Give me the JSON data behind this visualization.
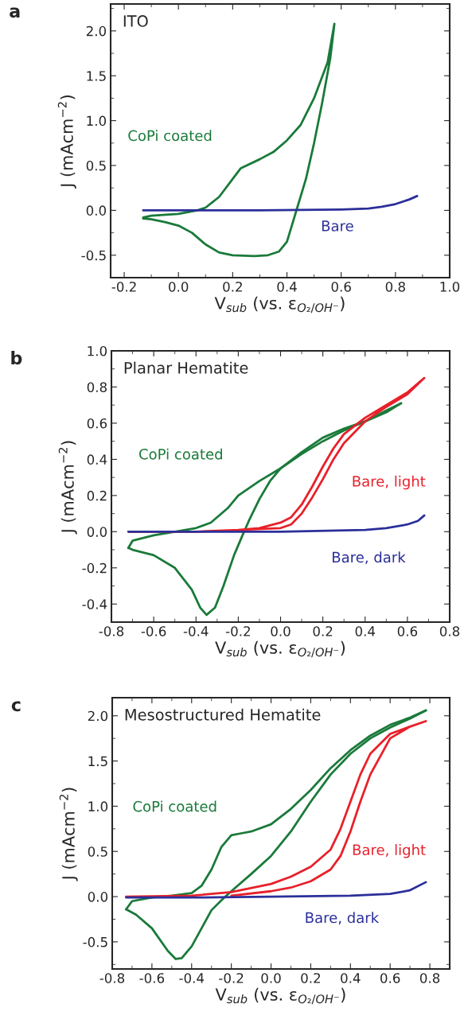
{
  "chart_data": [
    {
      "type": "line",
      "title": "a",
      "subtitle": "ITO",
      "xlabel": "V$_{sub}$ (vs. ε$_{O₂/OH⁻}$)",
      "ylabel": "J (mAcm$^{−2}$)",
      "xlim": [
        -0.25,
        1.0
      ],
      "ylim": [
        -0.75,
        2.3
      ],
      "xticks": [
        {
          "value": -0.2,
          "label": "-0.2"
        },
        {
          "value": 0,
          "label": "0.0"
        },
        0.2,
        0.4,
        0.6,
        0.8,
        {
          "value": 1,
          "label": "1.0"
        }
      ],
      "yticks": [
        {
          "value": -0.5,
          "label": "-0.5"
        },
        {
          "value": 0,
          "label": "0.0"
        },
        0.5,
        {
          "value": 1,
          "label": "1.0"
        },
        1.5,
        {
          "value": 2,
          "label": "2.0"
        }
      ],
      "grid": false,
      "series": [
        {
          "name": "CoPi coated",
          "color": "#1a7a3a",
          "x": [
            -0.13,
            -0.1,
            0,
            0.07,
            0.1,
            0.15,
            0.2,
            0.23,
            0.3,
            0.35,
            0.4,
            0.45,
            0.5,
            0.55,
            0.575,
            0.56,
            0.53,
            0.5,
            0.47,
            0.44,
            0.42,
            0.4,
            0.37,
            0.33,
            0.28,
            0.2,
            0.15,
            0.1,
            0.05,
            0,
            -0.05,
            -0.1,
            -0.13
          ],
          "values": [
            -0.08,
            -0.06,
            -0.04,
            0,
            0.03,
            0.15,
            0.35,
            0.47,
            0.57,
            0.65,
            0.78,
            0.95,
            1.25,
            1.65,
            2.08,
            1.7,
            1.2,
            0.75,
            0.35,
            0.05,
            -0.15,
            -0.35,
            -0.46,
            -0.5,
            -0.51,
            -0.5,
            -0.47,
            -0.38,
            -0.25,
            -0.17,
            -0.13,
            -0.1,
            -0.09
          ]
        },
        {
          "name": "Bare",
          "color": "#2b2f99",
          "x": [
            -0.13,
            0.3,
            0.6,
            0.7,
            0.75,
            0.8,
            0.85,
            0.88
          ],
          "values": [
            0,
            0,
            0.01,
            0.02,
            0.04,
            0.07,
            0.12,
            0.16
          ]
        }
      ]
    },
    {
      "type": "line",
      "title": "b",
      "subtitle": "Planar Hematite",
      "xlabel": "V$_{sub}$ (vs. ε$_{O₂/OH⁻}$)",
      "ylabel": "J (mAcm$^{−2}$)",
      "xlim": [
        -0.8,
        0.8
      ],
      "ylim": [
        -0.5,
        1.0
      ],
      "xticks": [
        {
          "value": -0.8,
          "label": "-0.8"
        },
        {
          "value": -0.6,
          "label": "-0.6"
        },
        {
          "value": -0.4,
          "label": "-0.4"
        },
        {
          "value": -0.2,
          "label": "-0.2"
        },
        {
          "value": 0,
          "label": "0.0"
        },
        0.2,
        0.4,
        0.6,
        0.8
      ],
      "yticks": [
        {
          "value": -0.4,
          "label": "-0.4"
        },
        {
          "value": -0.2,
          "label": "-0.2"
        },
        {
          "value": 0,
          "label": "0.0"
        },
        0.2,
        0.4,
        0.6,
        0.8,
        {
          "value": 1,
          "label": "1.0"
        }
      ],
      "grid": false,
      "series": [
        {
          "name": "CoPi coated",
          "color": "#1a7a3a",
          "x": [
            -0.72,
            -0.7,
            -0.6,
            -0.5,
            -0.4,
            -0.33,
            -0.25,
            -0.2,
            -0.1,
            0,
            0.1,
            0.2,
            0.3,
            0.4,
            0.5,
            0.57
          ],
          "values": [
            -0.09,
            -0.05,
            -0.02,
            0,
            0.02,
            0.05,
            0.13,
            0.2,
            0.28,
            0.35,
            0.43,
            0.5,
            0.56,
            0.61,
            0.66,
            0.71
          ]
        },
        {
          "color": "#1a7a3a",
          "x": [
            0.57,
            0.5,
            0.4,
            0.3,
            0.2,
            0.1,
            0,
            -0.05,
            -0.1,
            -0.15,
            -0.18,
            -0.22,
            -0.27,
            -0.31,
            -0.35,
            -0.38,
            -0.42,
            -0.5,
            -0.6,
            -0.7,
            -0.72
          ],
          "values": [
            0.71,
            0.67,
            0.61,
            0.57,
            0.52,
            0.44,
            0.35,
            0.28,
            0.18,
            0.06,
            -0.02,
            -0.13,
            -0.3,
            -0.42,
            -0.46,
            -0.42,
            -0.32,
            -0.2,
            -0.13,
            -0.1,
            -0.09
          ]
        },
        {
          "name": "Bare, light",
          "color": "#e8202a",
          "x": [
            -0.72,
            -0.4,
            -0.2,
            -0.1,
            0,
            0.05,
            0.1,
            0.15,
            0.2,
            0.25,
            0.3,
            0.4,
            0.5,
            0.6,
            0.68,
            0.6,
            0.5,
            0.4,
            0.3,
            0.25,
            0.2,
            0.15,
            0.1,
            0.05,
            0,
            -0.2
          ],
          "values": [
            0,
            0,
            0.01,
            0.02,
            0.05,
            0.08,
            0.15,
            0.25,
            0.36,
            0.46,
            0.54,
            0.63,
            0.7,
            0.77,
            0.85,
            0.76,
            0.69,
            0.61,
            0.49,
            0.4,
            0.29,
            0.19,
            0.1,
            0.04,
            0.02,
            0.01
          ]
        },
        {
          "name": "Bare, dark",
          "color": "#2b2f99",
          "x": [
            -0.72,
            0,
            0.4,
            0.5,
            0.6,
            0.65,
            0.68
          ],
          "values": [
            0,
            0,
            0.01,
            0.02,
            0.04,
            0.06,
            0.09
          ]
        }
      ]
    },
    {
      "type": "line",
      "title": "c",
      "subtitle": "Mesostructured Hematite",
      "xlabel": "V$_{sub}$ (vs. ε$_{O₂/OH⁻}$)",
      "ylabel": "J (mAcm$^{−2}$)",
      "xlim": [
        -0.8,
        0.9
      ],
      "ylim": [
        -0.8,
        2.2
      ],
      "xticks": [
        {
          "value": -0.8,
          "label": "-0.8"
        },
        {
          "value": -0.6,
          "label": "-0.6"
        },
        {
          "value": -0.4,
          "label": "-0.4"
        },
        {
          "value": -0.2,
          "label": "-0.2"
        },
        {
          "value": 0,
          "label": "0.0"
        },
        0.2,
        0.4,
        0.6,
        0.8
      ],
      "yticks": [
        {
          "value": -0.5,
          "label": "-0.5"
        },
        {
          "value": 0,
          "label": "0.0"
        },
        0.5,
        {
          "value": 1,
          "label": "1.0"
        },
        1.5,
        {
          "value": 2,
          "label": "2.0"
        }
      ],
      "grid": false,
      "series": [
        {
          "name": "CoPi coated",
          "color": "#1a7a3a",
          "x": [
            -0.73,
            -0.7,
            -0.6,
            -0.5,
            -0.4,
            -0.35,
            -0.3,
            -0.25,
            -0.2,
            -0.15,
            -0.1,
            0,
            0.1,
            0.2,
            0.3,
            0.4,
            0.5,
            0.6,
            0.7,
            0.78
          ],
          "values": [
            -0.14,
            -0.05,
            -0.01,
            0.01,
            0.04,
            0.12,
            0.3,
            0.55,
            0.68,
            0.7,
            0.72,
            0.8,
            0.97,
            1.18,
            1.42,
            1.62,
            1.78,
            1.9,
            1.98,
            2.06
          ]
        },
        {
          "color": "#1a7a3a",
          "x": [
            0.78,
            0.7,
            0.6,
            0.5,
            0.4,
            0.3,
            0.2,
            0.1,
            0,
            -0.1,
            -0.2,
            -0.24,
            -0.3,
            -0.35,
            -0.4,
            -0.45,
            -0.48,
            -0.52,
            -0.6,
            -0.68,
            -0.73
          ],
          "values": [
            2.06,
            1.97,
            1.87,
            1.75,
            1.58,
            1.35,
            1.05,
            0.72,
            0.45,
            0.25,
            0.06,
            -0.02,
            -0.15,
            -0.35,
            -0.55,
            -0.68,
            -0.69,
            -0.6,
            -0.35,
            -0.2,
            -0.14
          ]
        },
        {
          "name": "Bare, light",
          "color": "#e8202a",
          "x": [
            -0.73,
            -0.4,
            -0.2,
            0,
            0.1,
            0.2,
            0.3,
            0.35,
            0.4,
            0.45,
            0.5,
            0.6,
            0.7,
            0.78,
            0.7,
            0.6,
            0.5,
            0.45,
            0.4,
            0.35,
            0.3,
            0.2,
            0.1,
            0,
            -0.2
          ],
          "values": [
            0,
            0.01,
            0.05,
            0.14,
            0.22,
            0.33,
            0.52,
            0.75,
            1.05,
            1.35,
            1.58,
            1.8,
            1.88,
            1.94,
            1.88,
            1.75,
            1.35,
            1.05,
            0.72,
            0.45,
            0.3,
            0.17,
            0.1,
            0.06,
            0.01
          ]
        },
        {
          "name": "Bare, dark",
          "color": "#2b2f99",
          "x": [
            -0.73,
            -0.4,
            0,
            0.4,
            0.6,
            0.7,
            0.78
          ],
          "values": [
            -0.01,
            -0.01,
            0,
            0.01,
            0.03,
            0.07,
            0.16
          ]
        }
      ]
    }
  ]
}
